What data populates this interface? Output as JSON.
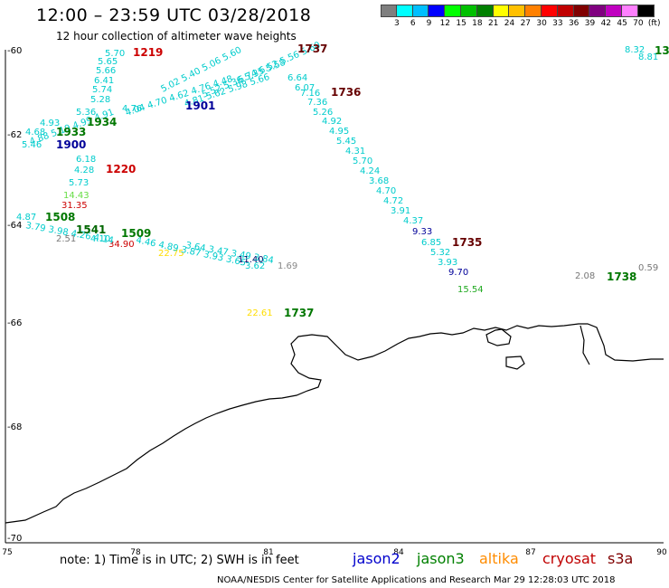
{
  "title": "12:00 – 23:59 UTC 03/28/2018",
  "subtitle": "12 hour collection of altimeter wave heights",
  "legend": {
    "colors": [
      "#7f7f7f",
      "#00ffff",
      "#00bfff",
      "#0000ff",
      "#00ff00",
      "#00c000",
      "#008000",
      "#ffff00",
      "#ffc000",
      "#ff8000",
      "#ff0000",
      "#c00000",
      "#800000",
      "#800080",
      "#c000c0",
      "#ff80ff",
      "#000000"
    ],
    "labels": [
      "3",
      "6",
      "9",
      "12",
      "15",
      "18",
      "21",
      "24",
      "27",
      "30",
      "33",
      "36",
      "39",
      "42",
      "45",
      "70",
      "(ft)"
    ]
  },
  "axes": {
    "lat_labels": [
      "-60",
      "-62",
      "-64",
      "-66",
      "-68",
      "-70"
    ],
    "lon_labels": [
      "75",
      "78",
      "81",
      "84",
      "87",
      "90"
    ]
  },
  "note": "note: 1) Time is in UTC; 2) SWH is in feet",
  "missions": [
    {
      "name": "jason2",
      "color": "#0000cc"
    },
    {
      "name": "jason3",
      "color": "#008000"
    },
    {
      "name": "altika",
      "color": "#ff8c00"
    },
    {
      "name": "cryosat",
      "color": "#c00000"
    },
    {
      "name": "s3a",
      "color": "#800000"
    }
  ],
  "credit": "NOAA/NESDIS Center for Satellite Applications and Research     Mar 29 12:28:03 UTC 2018",
  "observations": [
    {
      "text": "5.70",
      "color": "#00cccc"
    },
    {
      "text": "5.65",
      "color": "#00cccc"
    },
    {
      "text": "5.66",
      "color": "#00cccc"
    },
    {
      "text": "6.41",
      "color": "#00cccc"
    },
    {
      "text": "5.74",
      "color": "#00cccc"
    },
    {
      "text": "5.28",
      "color": "#00cccc"
    },
    {
      "text": "4.93",
      "color": "#00cccc"
    },
    {
      "text": "4.68",
      "color": "#00cccc"
    },
    {
      "text": "5.46",
      "color": "#00cccc"
    },
    {
      "text": "6.18",
      "color": "#00cccc"
    },
    {
      "text": "4.28",
      "color": "#00cccc"
    },
    {
      "text": "5.73",
      "color": "#00cccc"
    },
    {
      "text": "14.43",
      "color": "#66dd44"
    },
    {
      "text": "31.35",
      "color": "#cc0000"
    },
    {
      "text": "4.87",
      "color": "#00cccc"
    },
    {
      "text": "2.51",
      "color": "#777777"
    },
    {
      "text": "4.10",
      "color": "#00cccc"
    },
    {
      "text": "34.90",
      "color": "#cc0000"
    },
    {
      "text": "11.40",
      "color": "#000066"
    },
    {
      "text": "3.62",
      "color": "#00cccc"
    },
    {
      "text": "1.69",
      "color": "#888888"
    },
    {
      "text": "22.61",
      "color": "#ffdd00"
    },
    {
      "text": "22.75",
      "color": "#ffdd00"
    },
    {
      "text": "6.64",
      "color": "#00cccc"
    },
    {
      "text": "7.16",
      "color": "#00cccc"
    },
    {
      "text": "7.36",
      "color": "#00cccc"
    },
    {
      "text": "5.26",
      "color": "#00cccc"
    },
    {
      "text": "4.92",
      "color": "#00cccc"
    },
    {
      "text": "4.95",
      "color": "#00cccc"
    },
    {
      "text": "5.45",
      "color": "#00cccc"
    },
    {
      "text": "4.31",
      "color": "#00cccc"
    },
    {
      "text": "5.70",
      "color": "#00cccc"
    },
    {
      "text": "4.24",
      "color": "#00cccc"
    },
    {
      "text": "3.68",
      "color": "#00cccc"
    },
    {
      "text": "4.70",
      "color": "#00cccc"
    },
    {
      "text": "4.72",
      "color": "#00cccc"
    },
    {
      "text": "3.91",
      "color": "#00cccc"
    },
    {
      "text": "4.37",
      "color": "#00cccc"
    },
    {
      "text": "9.33",
      "color": "#000099"
    },
    {
      "text": "6.85",
      "color": "#00cccc"
    },
    {
      "text": "5.32",
      "color": "#00cccc"
    },
    {
      "text": "3.93",
      "color": "#00cccc"
    },
    {
      "text": "9.70",
      "color": "#000099"
    },
    {
      "text": "15.54",
      "color": "#22aa22"
    },
    {
      "text": "2.08",
      "color": "#777777"
    },
    {
      "text": "0.59",
      "color": "#777777"
    },
    {
      "text": "8.32",
      "color": "#00cccc"
    },
    {
      "text": "8.81",
      "color": "#00cccc"
    },
    {
      "text": "6.07",
      "color": "#00cccc"
    },
    {
      "text": "4.76",
      "color": "#00cccc"
    },
    {
      "text": "5.36",
      "color": "#00cccc"
    }
  ],
  "times": [
    {
      "text": "1219",
      "color": "#cc0000"
    },
    {
      "text": "1737",
      "color": "#660000"
    },
    {
      "text": "1736",
      "color": "#660000"
    },
    {
      "text": "1901",
      "color": "#000099"
    },
    {
      "text": "1934",
      "color": "#007700"
    },
    {
      "text": "1933",
      "color": "#007700"
    },
    {
      "text": "1900",
      "color": "#000099"
    },
    {
      "text": "1220",
      "color": "#cc0000"
    },
    {
      "text": "1508",
      "color": "#007700"
    },
    {
      "text": "1509",
      "color": "#007700"
    },
    {
      "text": "1541",
      "color": "#006600"
    },
    {
      "text": "1735",
      "color": "#660000"
    },
    {
      "text": "1737",
      "color": "#007700"
    },
    {
      "text": "1738",
      "color": "#007700"
    },
    {
      "text": "13",
      "color": "#007700"
    }
  ]
}
